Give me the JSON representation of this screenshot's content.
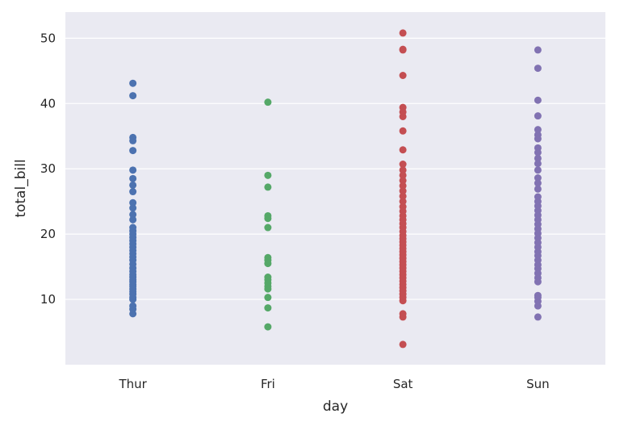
{
  "chart_data": {
    "type": "scatter",
    "title": "",
    "xlabel": "day",
    "ylabel": "total_bill",
    "categories": [
      "Thur",
      "Fri",
      "Sat",
      "Sun"
    ],
    "ylim": [
      0,
      54
    ],
    "yticks": [
      10,
      20,
      30,
      40,
      50
    ],
    "grid": "horizontal",
    "background": "#EAEAF2",
    "series": [
      {
        "category": "Thur",
        "color": "#4C72B0",
        "values": [
          7.8,
          8.5,
          9.0,
          10.0,
          10.3,
          10.8,
          11.2,
          11.6,
          12.0,
          12.3,
          12.7,
          13.0,
          13.4,
          13.8,
          14.3,
          14.8,
          15.4,
          16.0,
          16.5,
          17.0,
          17.5,
          18.0,
          18.5,
          19.0,
          19.5,
          20.0,
          20.5,
          21.0,
          22.2,
          23.0,
          24.0,
          24.8,
          26.5,
          27.5,
          28.5,
          29.8,
          32.8,
          34.3,
          34.8,
          41.2,
          43.1
        ]
      },
      {
        "category": "Fri",
        "color": "#55A868",
        "values": [
          5.8,
          8.7,
          10.3,
          11.6,
          12.0,
          12.5,
          13.0,
          13.4,
          15.5,
          16.0,
          16.4,
          21.0,
          22.4,
          22.8,
          27.2,
          29.0,
          40.2
        ]
      },
      {
        "category": "Sat",
        "color": "#C44E52",
        "values": [
          3.1,
          7.3,
          7.8,
          9.8,
          10.3,
          10.8,
          11.3,
          11.8,
          12.3,
          12.8,
          13.3,
          13.8,
          14.3,
          14.8,
          15.3,
          15.8,
          16.3,
          16.8,
          17.3,
          17.8,
          18.3,
          18.8,
          19.3,
          19.8,
          20.4,
          21.0,
          21.6,
          22.2,
          22.8,
          23.5,
          24.2,
          25.0,
          25.8,
          26.6,
          27.4,
          28.2,
          29.0,
          29.8,
          30.7,
          32.9,
          35.8,
          38.0,
          38.7,
          39.4,
          44.3,
          48.2,
          48.3,
          50.8
        ]
      },
      {
        "category": "Sun",
        "color": "#8172B2",
        "values": [
          7.3,
          9.0,
          9.7,
          10.3,
          10.6,
          12.7,
          13.3,
          14.0,
          14.7,
          15.3,
          16.0,
          16.7,
          17.3,
          18.0,
          18.7,
          19.4,
          20.1,
          20.8,
          21.5,
          22.2,
          22.9,
          23.6,
          24.3,
          25.0,
          25.7,
          26.9,
          27.8,
          28.6,
          29.8,
          30.8,
          31.6,
          32.5,
          33.2,
          34.6,
          35.2,
          36.0,
          38.1,
          40.5,
          45.4,
          48.2
        ]
      }
    ]
  }
}
